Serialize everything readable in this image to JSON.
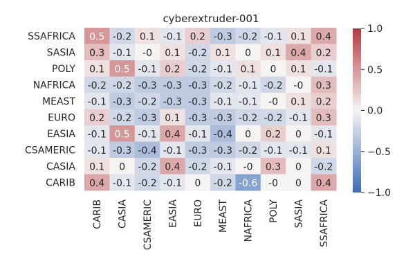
{
  "chart_data": {
    "type": "heatmap",
    "title": "cyberextruder-001",
    "xlabel": "",
    "ylabel": "",
    "x_categories": [
      "CARIB",
      "CASIA",
      "CSAMERIC",
      "EASIA",
      "EURO",
      "MEAST",
      "NAFRICA",
      "POLY",
      "SASIA",
      "SSAFRICA"
    ],
    "y_categories": [
      "SSAFRICA",
      "SASIA",
      "POLY",
      "NAFRICA",
      "MEAST",
      "EURO",
      "EASIA",
      "CSAMERIC",
      "CASIA",
      "CARIB"
    ],
    "values": [
      [
        "0.5",
        "-0.2",
        "0.1",
        "-0.1",
        "0.2",
        "-0.3",
        "-0.2",
        "-0.1",
        "0.1",
        "0.4"
      ],
      [
        "0.3",
        "-0.1",
        "-0",
        "0.1",
        "-0.2",
        "0.1",
        "0",
        "0.1",
        "0.4",
        "0.2"
      ],
      [
        "0.1",
        "0.5",
        "-0.1",
        "0.2",
        "-0.2",
        "-0.1",
        "0.1",
        "0",
        "0.1",
        "-0.1"
      ],
      [
        "-0.2",
        "-0.2",
        "-0.3",
        "-0.3",
        "-0.3",
        "-0.2",
        "-0.1",
        "-0.2",
        "-0",
        "0.3"
      ],
      [
        "-0.1",
        "-0.3",
        "-0.2",
        "-0.3",
        "-0.3",
        "-0.1",
        "-0.1",
        "-0",
        "0.1",
        "0.2"
      ],
      [
        "0.2",
        "-0.2",
        "-0.3",
        "0.1",
        "-0.3",
        "-0.3",
        "-0.2",
        "-0.2",
        "-0.1",
        "0.3"
      ],
      [
        "-0.1",
        "0.5",
        "-0.1",
        "0.4",
        "-0.1",
        "-0.4",
        "0",
        "0.2",
        "0",
        "-0.1"
      ],
      [
        "-0.1",
        "-0.3",
        "-0.4",
        "-0.1",
        "-0.3",
        "-0.3",
        "-0.2",
        "-0.1",
        "-0.1",
        "0.1"
      ],
      [
        "0.1",
        "0",
        "-0.2",
        "0.4",
        "-0.2",
        "-0.1",
        "-0",
        "0.3",
        "0",
        "-0.2"
      ],
      [
        "0.4",
        "-0.1",
        "-0.2",
        "-0.1",
        "0",
        "-0.2",
        "-0.6",
        "-0",
        "0",
        "0.4"
      ]
    ],
    "colorbar": {
      "range": [
        -1.0,
        1.0
      ],
      "ticks": [
        "-1.0",
        "-0.5",
        "0.0",
        "0.5",
        "1.0"
      ],
      "colormap": "vlag",
      "low_color": "#3a6db5",
      "mid_color": "#f6f3f3",
      "high_color": "#b63b3e"
    },
    "grid": false,
    "legend": "colorbar-right"
  }
}
